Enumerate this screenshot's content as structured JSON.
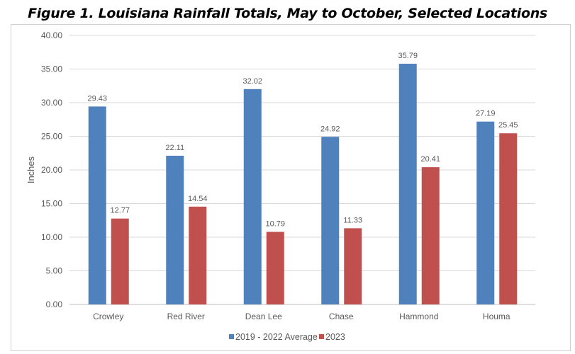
{
  "chart_data": {
    "type": "bar",
    "title": "Figure 1.  Louisiana Rainfall Totals, May to October, Selected Locations",
    "xlabel": "",
    "ylabel": "Inches",
    "ylim": [
      0,
      40
    ],
    "yticks": [
      "0.00",
      "5.00",
      "10.00",
      "15.00",
      "20.00",
      "25.00",
      "30.00",
      "35.00",
      "40.00"
    ],
    "grid": true,
    "legend_position": "bottom",
    "categories": [
      "Crowley",
      "Red River",
      "Dean Lee",
      "Chase",
      "Hammond",
      "Houma"
    ],
    "series": [
      {
        "name": "2019 - 2022 Average",
        "color": "#4f81bd",
        "values": [
          29.43,
          22.11,
          32.02,
          24.92,
          35.79,
          27.19
        ],
        "labels": [
          "29.43",
          "22.11",
          "32.02",
          "24.92",
          "35.79",
          "27.19"
        ]
      },
      {
        "name": "2023",
        "color": "#c0504d",
        "values": [
          12.77,
          14.54,
          10.79,
          11.33,
          20.41,
          25.45
        ],
        "labels": [
          "12.77",
          "14.54",
          "10.79",
          "11.33",
          "20.41",
          "25.45"
        ]
      }
    ]
  }
}
